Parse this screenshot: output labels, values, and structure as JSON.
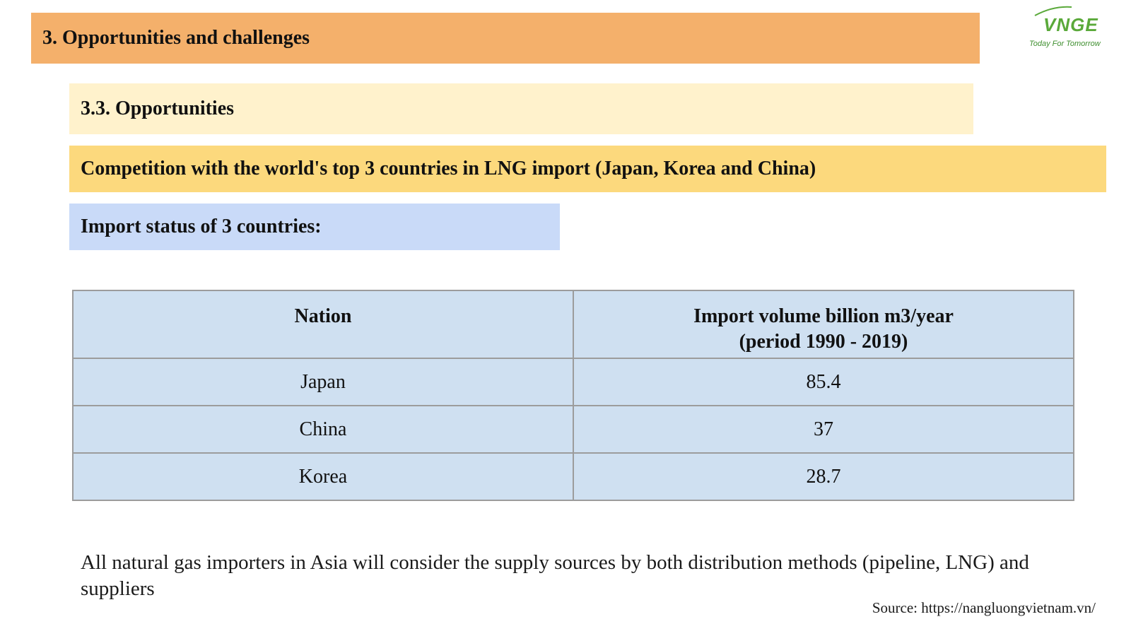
{
  "header": {
    "section_title": "3. Opportunities and challenges",
    "subsection_title": "3.3. Opportunities",
    "competition_title": "Competition with the world's top 3 countries in LNG import (Japan, Korea and China)",
    "status_title": "Import status of 3 countries:"
  },
  "logo": {
    "name": "VNGE",
    "tagline": "Today For Tomorrow",
    "color": "#5aa93a"
  },
  "table": {
    "headers": {
      "nation": "Nation",
      "volume_line1": "Import volume billion m3/year",
      "volume_line2": "(period 1990 - 2019)"
    },
    "rows": [
      {
        "nation": "Japan",
        "volume": "85.4"
      },
      {
        "nation": "China",
        "volume": "37"
      },
      {
        "nation": "Korea",
        "volume": "28.7"
      }
    ]
  },
  "note": "All natural gas importers in Asia will consider the supply sources by both distribution methods (pipeline, LNG) and suppliers",
  "source": "Source: https://nangluongvietnam.vn/",
  "colors": {
    "section_bar": "#f4b06b",
    "subsection_bar": "#fff2cc",
    "competition_bar": "#fcd97d",
    "status_bar": "#c9daf8",
    "table_fill": "#cfe0f1"
  }
}
